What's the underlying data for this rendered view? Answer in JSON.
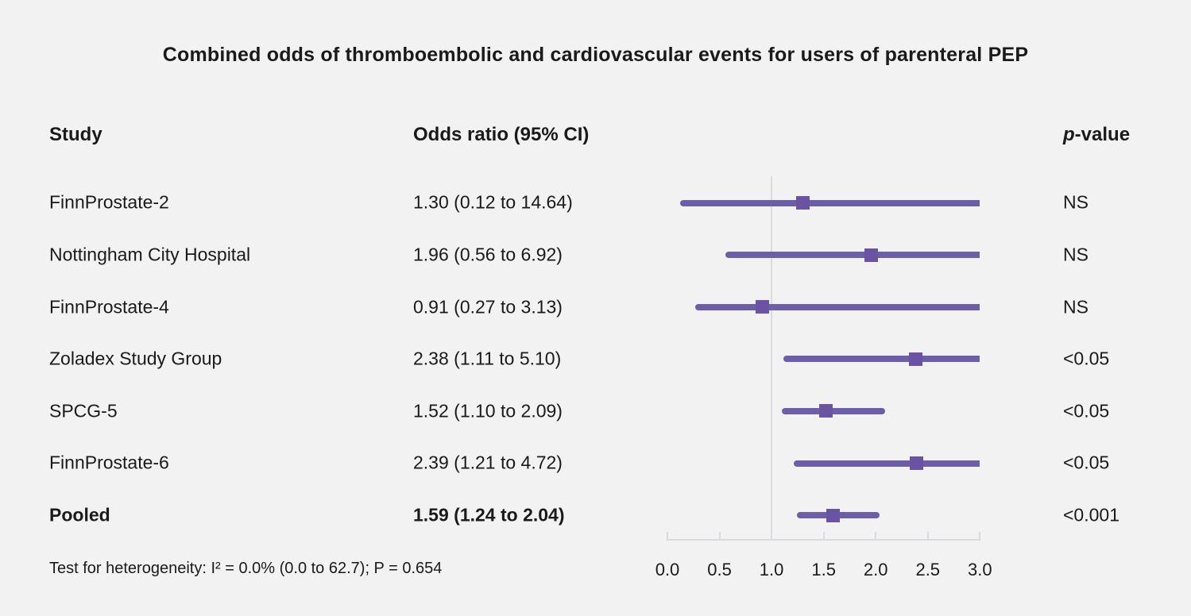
{
  "title": "Combined odds of thromboembolic and cardiovascular events for users of parenteral PEP",
  "columns": {
    "study": "Study",
    "or": "Odds ratio (95% CI)",
    "p_italic": "p",
    "p_rest": "-value"
  },
  "rows": [
    {
      "study": "FinnProstate-2",
      "or_ci": "1.30 (0.12 to 14.64)",
      "p": "NS"
    },
    {
      "study": "Nottingham City Hospital",
      "or_ci": "1.96 (0.56 to 6.92)",
      "p": "NS"
    },
    {
      "study": "FinnProstate-4",
      "or_ci": "0.91 (0.27 to 3.13)",
      "p": "NS"
    },
    {
      "study": "Zoladex Study Group",
      "or_ci": "2.38 (1.11 to 5.10)",
      "p": "<0.05"
    },
    {
      "study": "SPCG-5",
      "or_ci": "1.52 (1.10 to 2.09)",
      "p": "<0.05"
    },
    {
      "study": "FinnProstate-6",
      "or_ci": "2.39 (1.21 to 4.72)",
      "p": "<0.05"
    },
    {
      "study": "Pooled",
      "or_ci": "1.59 (1.24 to 2.04)",
      "p": "<0.001"
    }
  ],
  "footnote": "Test for heterogeneity: I² = 0.0% (0.0 to 62.7); P = 0.654",
  "chart_data": {
    "type": "forest",
    "title": "Combined odds of thromboembolic and cardiovascular events for users of parenteral PEP",
    "xlim": [
      0.0,
      3.0
    ],
    "reference_line": 1.0,
    "tick_values": [
      0.0,
      0.5,
      1.0,
      1.5,
      2.0,
      2.5,
      3.0
    ],
    "tick_labels": [
      "0.0",
      "0.5",
      "1.0",
      "1.5",
      "2.0",
      "2.5",
      "3.0"
    ],
    "series": [
      {
        "name": "FinnProstate-2",
        "estimate": 1.3,
        "ci_low": 0.12,
        "ci_high": 14.64,
        "p": "NS",
        "pooled": false
      },
      {
        "name": "Nottingham City Hospital",
        "estimate": 1.96,
        "ci_low": 0.56,
        "ci_high": 6.92,
        "p": "NS",
        "pooled": false
      },
      {
        "name": "FinnProstate-4",
        "estimate": 0.91,
        "ci_low": 0.27,
        "ci_high": 3.13,
        "p": "NS",
        "pooled": false
      },
      {
        "name": "Zoladex Study Group",
        "estimate": 2.38,
        "ci_low": 1.11,
        "ci_high": 5.1,
        "p": "<0.05",
        "pooled": false
      },
      {
        "name": "SPCG-5",
        "estimate": 1.52,
        "ci_low": 1.1,
        "ci_high": 2.09,
        "p": "<0.05",
        "pooled": false
      },
      {
        "name": "FinnProstate-6",
        "estimate": 2.39,
        "ci_low": 1.21,
        "ci_high": 4.72,
        "p": "<0.05",
        "pooled": false
      },
      {
        "name": "Pooled",
        "estimate": 1.59,
        "ci_low": 1.24,
        "ci_high": 2.04,
        "p": "<0.001",
        "pooled": true
      }
    ],
    "colors": {
      "ci_line": "#6d5ea9",
      "marker": "#6a53a3",
      "reference_line": "#d8dbe0",
      "axis": "#d8dbe0",
      "background": "#f2f2f2",
      "text": "#1a1a1a"
    }
  }
}
